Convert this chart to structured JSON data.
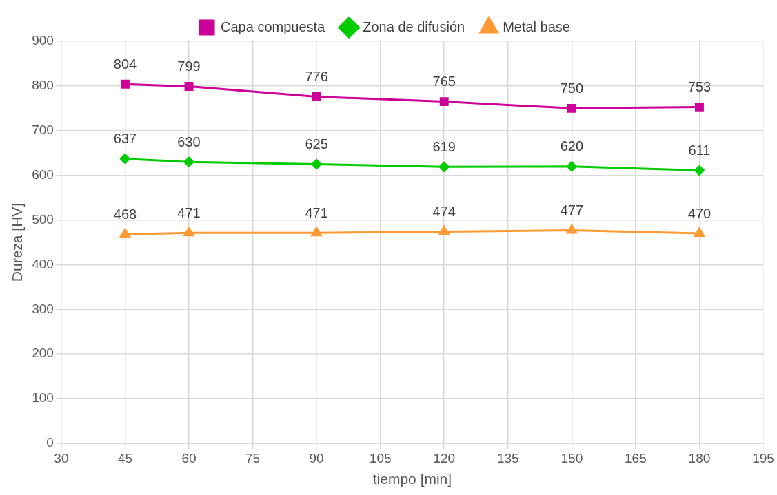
{
  "chart_data": {
    "type": "line",
    "xlabel": "tiempo [min]",
    "ylabel": "Dureza [HV]",
    "x": [
      45,
      60,
      90,
      120,
      150,
      180
    ],
    "series": [
      {
        "name": "Capa compuesta",
        "color": "#cc0099",
        "marker": "square",
        "values": [
          804,
          799,
          776,
          765,
          750,
          753
        ]
      },
      {
        "name": "Zona de difusión",
        "color": "#00cc00",
        "marker": "diamond",
        "values": [
          637,
          630,
          625,
          619,
          620,
          611
        ]
      },
      {
        "name": "Metal base",
        "color": "#ff9933",
        "marker": "triangle",
        "values": [
          468,
          471,
          471,
          474,
          477,
          470
        ]
      }
    ],
    "xlim": [
      30,
      195
    ],
    "xticks": [
      30,
      45,
      60,
      75,
      90,
      105,
      120,
      135,
      150,
      165,
      180,
      195
    ],
    "ylim": [
      0,
      900
    ],
    "yticks": [
      0,
      100,
      200,
      300,
      400,
      500,
      600,
      700,
      800,
      900
    ],
    "grid": true,
    "legend": "top",
    "data_labels": true,
    "line_style": "solid"
  }
}
